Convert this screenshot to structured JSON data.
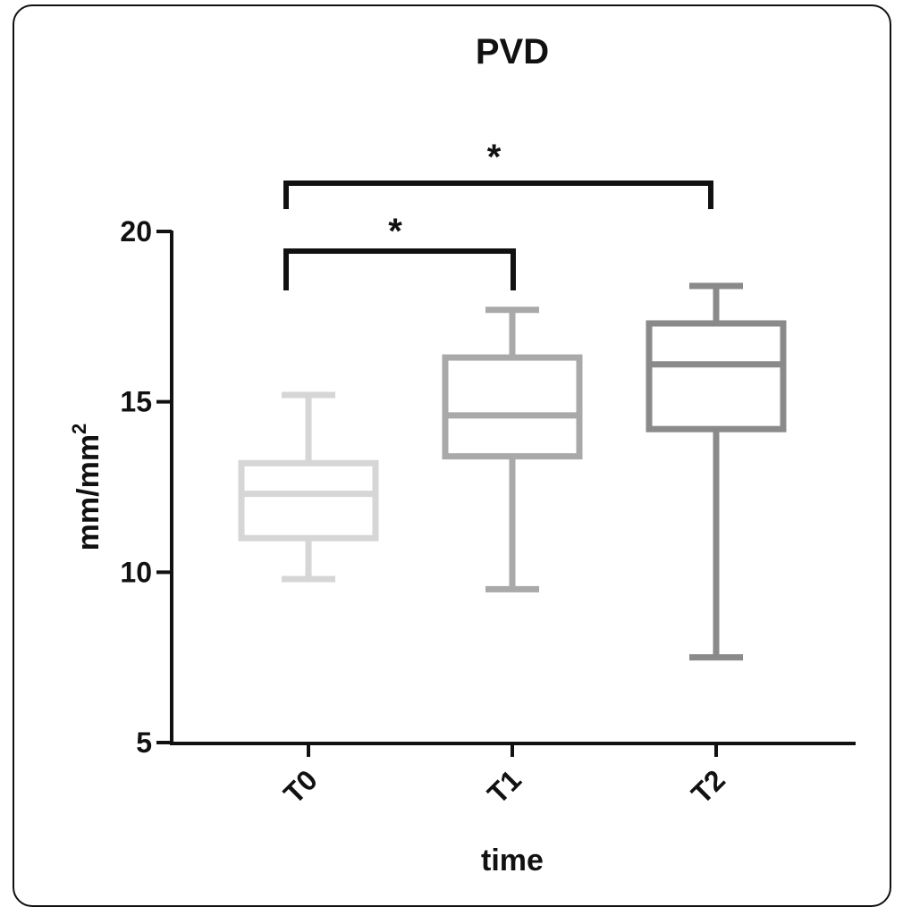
{
  "chart_data": {
    "type": "box",
    "title": "PVD",
    "xlabel": "time",
    "ylabel": "mm/mm",
    "ylabel_superscript": "2",
    "ylim": [
      5,
      20
    ],
    "yticks": [
      5,
      10,
      15,
      20
    ],
    "categories": [
      "T0",
      "T1",
      "T2"
    ],
    "boxes": [
      {
        "label": "T0",
        "min": 9.8,
        "q1": 11.0,
        "median": 12.3,
        "q3": 13.2,
        "max": 15.2,
        "color": "#d6d6d6"
      },
      {
        "label": "T1",
        "min": 9.5,
        "q1": 13.4,
        "median": 14.6,
        "q3": 16.3,
        "max": 17.7,
        "color": "#a9a9a9"
      },
      {
        "label": "T2",
        "min": 7.5,
        "q1": 14.2,
        "median": 16.1,
        "q3": 17.3,
        "max": 18.4,
        "color": "#8a8a8a"
      }
    ],
    "significance": [
      {
        "from": "T0",
        "to": "T1",
        "label": "*"
      },
      {
        "from": "T0",
        "to": "T2",
        "label": "*"
      }
    ]
  }
}
